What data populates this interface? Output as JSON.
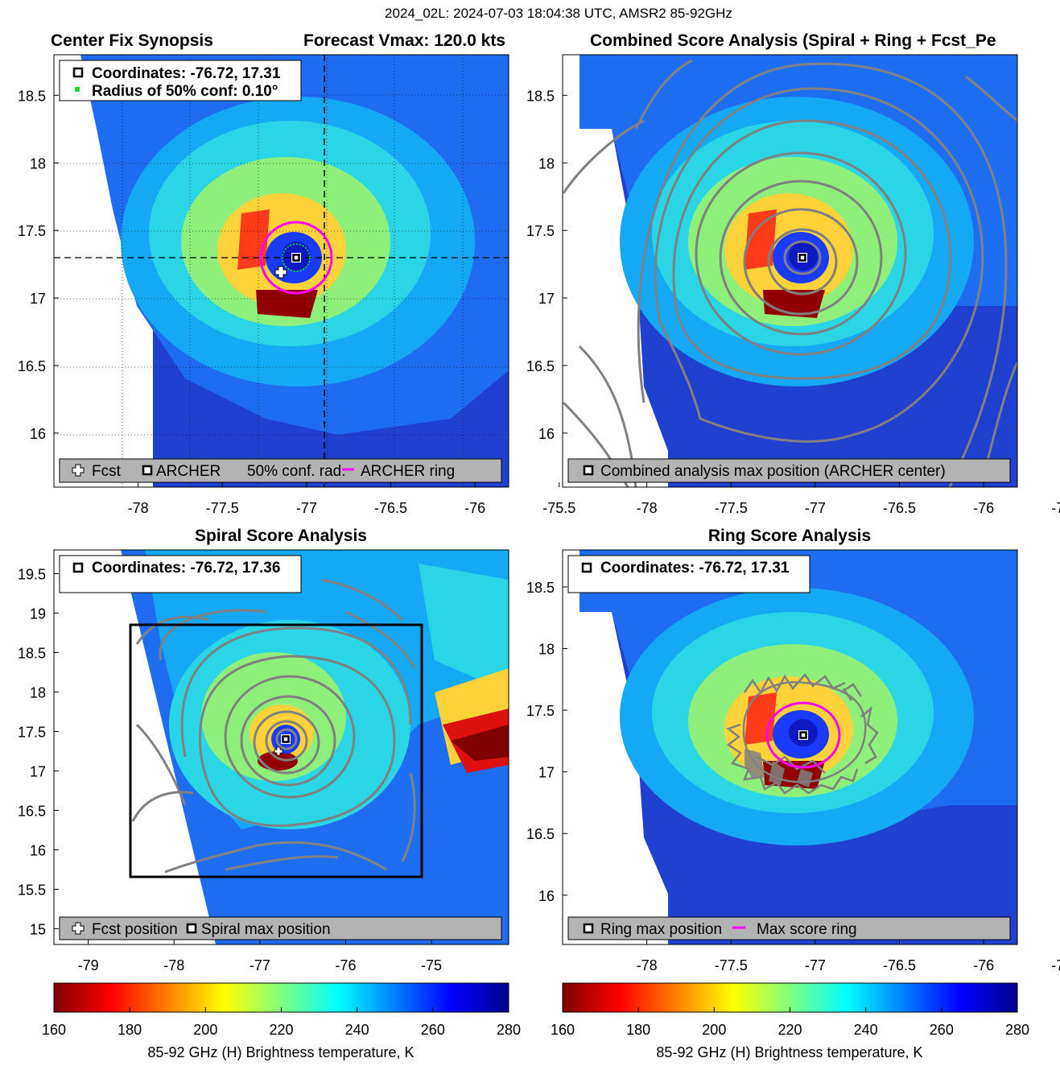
{
  "suptitle": "2024_02L: 2024-07-03 18:04:38 UTC, AMSR2 85-92GHz",
  "chart_data": [
    {
      "id": "synopsis",
      "type": "heatmap",
      "title_left": "Center Fix Synopsis",
      "title_right": "Forecast Vmax: 120.0 kts",
      "xlim": [
        -78.5,
        -75.8
      ],
      "ylim": [
        15.6,
        18.8
      ],
      "xticks": [
        "-78",
        "-77.5",
        "-77",
        "-76.5",
        "-76",
        "-75.5"
      ],
      "xtick_values": [
        -78,
        -77.5,
        -77,
        -76.5,
        -76,
        -75.5
      ],
      "yticks": [
        "16",
        "16.5",
        "17",
        "17.5",
        "18",
        "18.5"
      ],
      "ytick_values": [
        16,
        16.5,
        17,
        17.5,
        18,
        18.5
      ],
      "grid": true,
      "info_lines": [
        "Coordinates: -76.72, 17.31",
        "Radius of 50% conf: 0.10°"
      ],
      "legend": [
        "Fcst",
        "ARCHER",
        "50% conf. rad.",
        "ARCHER ring"
      ],
      "archer_center": [
        -76.72,
        17.31
      ],
      "fcst_position": [
        -76.83,
        17.2
      ],
      "conf_radius_deg": 0.1,
      "ring_radius_deg": 0.26,
      "dashed_lines": {
        "lon": -76.5,
        "lat": 17.31
      }
    },
    {
      "id": "combined",
      "type": "heatmap",
      "title": "Combined Score Analysis (Spiral + Ring + Fcst_Pe",
      "xlim": [
        -78.5,
        -75.8
      ],
      "ylim": [
        15.6,
        18.8
      ],
      "xticks": [
        "-78",
        "-77.5",
        "-77",
        "-76.5",
        "-76",
        "-75.5"
      ],
      "xtick_values": [
        -78,
        -77.5,
        -77,
        -76.5,
        -76,
        -75.5
      ],
      "yticks": [
        "16",
        "16.5",
        "17",
        "17.5",
        "18",
        "18.5"
      ],
      "ytick_values": [
        16,
        16.5,
        17,
        17.5,
        18,
        18.5
      ],
      "max_position": [
        -76.72,
        17.31
      ],
      "legend": [
        "Combined analysis max position (ARCHER center)"
      ]
    },
    {
      "id": "spiral",
      "type": "heatmap",
      "title": "Spiral Score Analysis",
      "xlim": [
        -79.4,
        -74.1
      ],
      "ylim": [
        14.8,
        19.8
      ],
      "xticks": [
        "-79",
        "-78",
        "-77",
        "-76",
        "-75"
      ],
      "xtick_values": [
        -79,
        -78,
        -77,
        -76,
        -75
      ],
      "yticks": [
        "15",
        "15.5",
        "16",
        "16.5",
        "17",
        "17.5",
        "18",
        "18.5",
        "19",
        "19.5"
      ],
      "ytick_values": [
        15,
        15.5,
        16,
        16.5,
        17,
        17.5,
        18,
        18.5,
        19,
        19.5
      ],
      "info_lines": [
        "Coordinates: -76.72, 17.36"
      ],
      "max_position": [
        -76.72,
        17.36
      ],
      "legend": [
        "Fcst position",
        "Spiral max position"
      ],
      "search_box": {
        "lon": [
          -78.5,
          -74.8
        ],
        "lat": [
          15.6,
          18.8
        ]
      }
    },
    {
      "id": "ring",
      "type": "heatmap",
      "title": "Ring Score Analysis",
      "xlim": [
        -78.5,
        -75.8
      ],
      "ylim": [
        15.6,
        18.8
      ],
      "xticks": [
        "-78",
        "-77.5",
        "-77",
        "-76.5",
        "-76",
        "-75.5"
      ],
      "xtick_values": [
        -78,
        -77.5,
        -77,
        -76.5,
        -76,
        -75.5
      ],
      "yticks": [
        "16",
        "16.5",
        "17",
        "17.5",
        "18",
        "18.5"
      ],
      "ytick_values": [
        16,
        16.5,
        17,
        17.5,
        18,
        18.5
      ],
      "info_lines": [
        "Coordinates: -76.72, 17.31"
      ],
      "max_position": [
        -76.72,
        17.31
      ],
      "ring_radius_deg": 0.27,
      "legend": [
        "Ring max position",
        "Max score ring"
      ]
    }
  ],
  "colorbar": {
    "label": "85-92 GHz (H) Brightness temperature, K",
    "ticks": [
      "160",
      "180",
      "200",
      "220",
      "240",
      "260",
      "280"
    ],
    "range": [
      160,
      280
    ]
  },
  "colors": {
    "magenta": "#ff00ff",
    "contour": "#808080",
    "legend_bg": "#b3b3b3",
    "conf_green": "#00ff00"
  }
}
